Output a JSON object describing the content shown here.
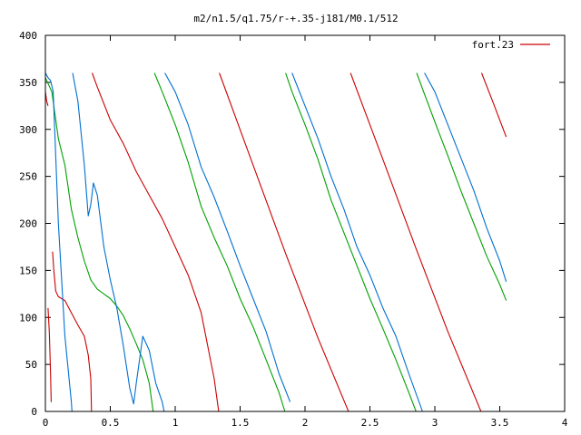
{
  "chart_data": {
    "type": "line",
    "title": "m2/n1.5/q1.75/r-+.35-j181/M0.1/512",
    "xlabel": "",
    "ylabel": "",
    "xlim": [
      0,
      4
    ],
    "ylim": [
      0,
      400
    ],
    "xticks": [
      {
        "value": 0,
        "label": "0"
      },
      {
        "value": 0.5,
        "label": "0.5"
      },
      {
        "value": 1,
        "label": "1"
      },
      {
        "value": 1.5,
        "label": "1.5"
      },
      {
        "value": 2,
        "label": "2"
      },
      {
        "value": 2.5,
        "label": "2.5"
      },
      {
        "value": 3,
        "label": "3"
      },
      {
        "value": 3.5,
        "label": "3.5"
      },
      {
        "value": 4,
        "label": "4"
      }
    ],
    "yticks": [
      {
        "value": 0,
        "label": "0"
      },
      {
        "value": 50,
        "label": "50"
      },
      {
        "value": 100,
        "label": "100"
      },
      {
        "value": 150,
        "label": "150"
      },
      {
        "value": 200,
        "label": "200"
      },
      {
        "value": 250,
        "label": "250"
      },
      {
        "value": 300,
        "label": "300"
      },
      {
        "value": 350,
        "label": "350"
      },
      {
        "value": 400,
        "label": "400"
      }
    ],
    "grid": false,
    "legend_position": "top-right",
    "series": [
      {
        "name": "fort.23",
        "color": "#cc0000",
        "segments": [
          [
            [
              0.0,
              340
            ],
            [
              0.01,
              330
            ],
            [
              0.02,
              325
            ]
          ],
          [
            [
              0.02,
              110
            ],
            [
              0.03,
              85
            ],
            [
              0.04,
              40
            ],
            [
              0.045,
              10
            ]
          ],
          [
            [
              0.055,
              170
            ],
            [
              0.065,
              150
            ],
            [
              0.08,
              128
            ],
            [
              0.1,
              122
            ],
            [
              0.15,
              118
            ],
            [
              0.2,
              105
            ],
            [
              0.25,
              92
            ],
            [
              0.3,
              80
            ],
            [
              0.33,
              60
            ],
            [
              0.35,
              35
            ],
            [
              0.355,
              0
            ]
          ],
          [
            [
              0.36,
              360
            ],
            [
              0.4,
              345
            ],
            [
              0.5,
              310
            ],
            [
              0.6,
              285
            ],
            [
              0.7,
              255
            ],
            [
              0.8,
              230
            ],
            [
              0.9,
              205
            ],
            [
              1.0,
              175
            ],
            [
              1.1,
              145
            ],
            [
              1.2,
              105
            ],
            [
              1.3,
              35
            ],
            [
              1.335,
              0
            ]
          ],
          [
            [
              1.34,
              360
            ],
            [
              1.6,
              262
            ],
            [
              1.85,
              168
            ],
            [
              2.1,
              78
            ],
            [
              2.335,
              0
            ]
          ],
          [
            [
              2.35,
              360
            ],
            [
              2.6,
              268
            ],
            [
              2.85,
              175
            ],
            [
              3.1,
              85
            ],
            [
              3.355,
              0
            ]
          ],
          [
            [
              3.36,
              360
            ],
            [
              3.45,
              328
            ],
            [
              3.55,
              292
            ]
          ]
        ]
      },
      {
        "name": "",
        "color": "#00a000",
        "segments": [
          [
            [
              0.0,
              355
            ],
            [
              0.05,
              340
            ],
            [
              0.1,
              290
            ],
            [
              0.15,
              262
            ],
            [
              0.2,
              215
            ],
            [
              0.25,
              185
            ],
            [
              0.3,
              160
            ],
            [
              0.35,
              140
            ],
            [
              0.4,
              130
            ],
            [
              0.45,
              125
            ],
            [
              0.5,
              120
            ],
            [
              0.55,
              112
            ],
            [
              0.6,
              102
            ],
            [
              0.65,
              88
            ],
            [
              0.7,
              72
            ],
            [
              0.75,
              55
            ],
            [
              0.8,
              30
            ],
            [
              0.83,
              0
            ]
          ],
          [
            [
              0.84,
              360
            ],
            [
              0.9,
              340
            ],
            [
              1.0,
              305
            ],
            [
              1.1,
              265
            ],
            [
              1.2,
              218
            ],
            [
              1.3,
              185
            ],
            [
              1.4,
              155
            ],
            [
              1.5,
              120
            ],
            [
              1.6,
              90
            ],
            [
              1.7,
              55
            ],
            [
              1.8,
              20
            ],
            [
              1.845,
              0
            ]
          ],
          [
            [
              1.85,
              360
            ],
            [
              1.9,
              340
            ],
            [
              2.0,
              305
            ],
            [
              2.1,
              268
            ],
            [
              2.2,
              225
            ],
            [
              2.3,
              190
            ],
            [
              2.4,
              155
            ],
            [
              2.5,
              120
            ],
            [
              2.6,
              88
            ],
            [
              2.7,
              55
            ],
            [
              2.8,
              20
            ],
            [
              2.855,
              0
            ]
          ],
          [
            [
              2.86,
              360
            ],
            [
              2.9,
              345
            ],
            [
              3.0,
              308
            ],
            [
              3.1,
              272
            ],
            [
              3.2,
              235
            ],
            [
              3.3,
              200
            ],
            [
              3.4,
              165
            ],
            [
              3.5,
              135
            ],
            [
              3.55,
              118
            ]
          ]
        ]
      },
      {
        "name": "",
        "color": "#0070d0",
        "segments": [
          [
            [
              0.0,
              360
            ],
            [
              0.02,
              355
            ],
            [
              0.04,
              352
            ],
            [
              0.06,
              340
            ],
            [
              0.1,
              200
            ],
            [
              0.15,
              80
            ],
            [
              0.2,
              10
            ],
            [
              0.205,
              0
            ]
          ],
          [
            [
              0.21,
              360
            ],
            [
              0.25,
              330
            ],
            [
              0.3,
              262
            ],
            [
              0.33,
              208
            ],
            [
              0.35,
              220
            ],
            [
              0.37,
              243
            ],
            [
              0.4,
              230
            ],
            [
              0.45,
              175
            ],
            [
              0.5,
              140
            ],
            [
              0.55,
              110
            ],
            [
              0.6,
              70
            ],
            [
              0.65,
              25
            ],
            [
              0.68,
              8
            ],
            [
              0.7,
              30
            ],
            [
              0.75,
              80
            ],
            [
              0.8,
              65
            ],
            [
              0.85,
              30
            ],
            [
              0.9,
              10
            ],
            [
              0.915,
              0
            ]
          ],
          [
            [
              0.92,
              360
            ],
            [
              1.0,
              340
            ],
            [
              1.1,
              305
            ],
            [
              1.2,
              260
            ],
            [
              1.3,
              228
            ],
            [
              1.4,
              192
            ],
            [
              1.5,
              155
            ],
            [
              1.6,
              120
            ],
            [
              1.7,
              85
            ],
            [
              1.8,
              40
            ],
            [
              1.885,
              10
            ]
          ],
          [
            [
              1.9,
              360
            ],
            [
              2.0,
              325
            ],
            [
              2.1,
              290
            ],
            [
              2.2,
              250
            ],
            [
              2.3,
              215
            ],
            [
              2.4,
              175
            ],
            [
              2.5,
              145
            ],
            [
              2.6,
              110
            ],
            [
              2.7,
              80
            ],
            [
              2.8,
              40
            ],
            [
              2.905,
              0
            ]
          ],
          [
            [
              2.92,
              360
            ],
            [
              3.0,
              340
            ],
            [
              3.1,
              305
            ],
            [
              3.2,
              270
            ],
            [
              3.3,
              235
            ],
            [
              3.4,
              195
            ],
            [
              3.5,
              160
            ],
            [
              3.55,
              138
            ]
          ]
        ]
      }
    ]
  }
}
